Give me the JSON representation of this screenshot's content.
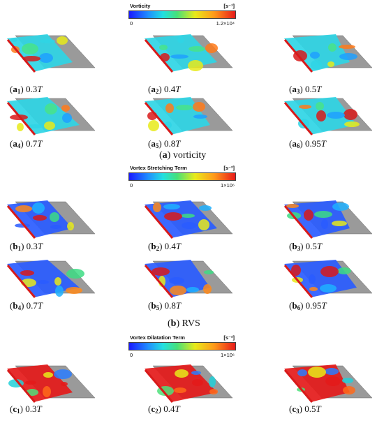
{
  "colorbars": {
    "a": {
      "title": "Vorticity",
      "unit": "[s⁻¹]",
      "min": "0",
      "max": "1.2×10⁴"
    },
    "b": {
      "title": "Vortex Stretching Term",
      "unit": "[s⁻²]",
      "min": "0",
      "max": "1×10⁶"
    },
    "c": {
      "title": "Vortex Dilatation Term",
      "unit": "[s⁻²]",
      "min": "0",
      "max": "1×10⁶"
    }
  },
  "panels": {
    "a": [
      {
        "label": "a",
        "sub": "1",
        "time": "0.3",
        "unit": "T"
      },
      {
        "label": "a",
        "sub": "2",
        "time": "0.4",
        "unit": "T"
      },
      {
        "label": "a",
        "sub": "3",
        "time": "0.5",
        "unit": "T"
      },
      {
        "label": "a",
        "sub": "4",
        "time": "0.7",
        "unit": "T"
      },
      {
        "label": "a",
        "sub": "5",
        "time": "0.8",
        "unit": "T"
      },
      {
        "label": "a",
        "sub": "6",
        "time": "0.95",
        "unit": "T"
      }
    ],
    "b": [
      {
        "label": "b",
        "sub": "1",
        "time": "0.3",
        "unit": "T"
      },
      {
        "label": "b",
        "sub": "2",
        "time": "0.4",
        "unit": "T"
      },
      {
        "label": "b",
        "sub": "3",
        "time": "0.5",
        "unit": "T"
      },
      {
        "label": "b",
        "sub": "4",
        "time": "0.7",
        "unit": "T"
      },
      {
        "label": "b",
        "sub": "5",
        "time": "0.8",
        "unit": "T"
      },
      {
        "label": "b",
        "sub": "6",
        "time": "0.95",
        "unit": "T"
      }
    ],
    "c": [
      {
        "label": "c",
        "sub": "1",
        "time": "0.3",
        "unit": "T"
      },
      {
        "label": "c",
        "sub": "2",
        "time": "0.4",
        "unit": "T"
      },
      {
        "label": "c",
        "sub": "3",
        "time": "0.5",
        "unit": "T"
      }
    ]
  },
  "group_captions": {
    "a": {
      "label": "a",
      "text": "vorticity"
    },
    "b": {
      "label": "b",
      "text": "RVS"
    }
  }
}
